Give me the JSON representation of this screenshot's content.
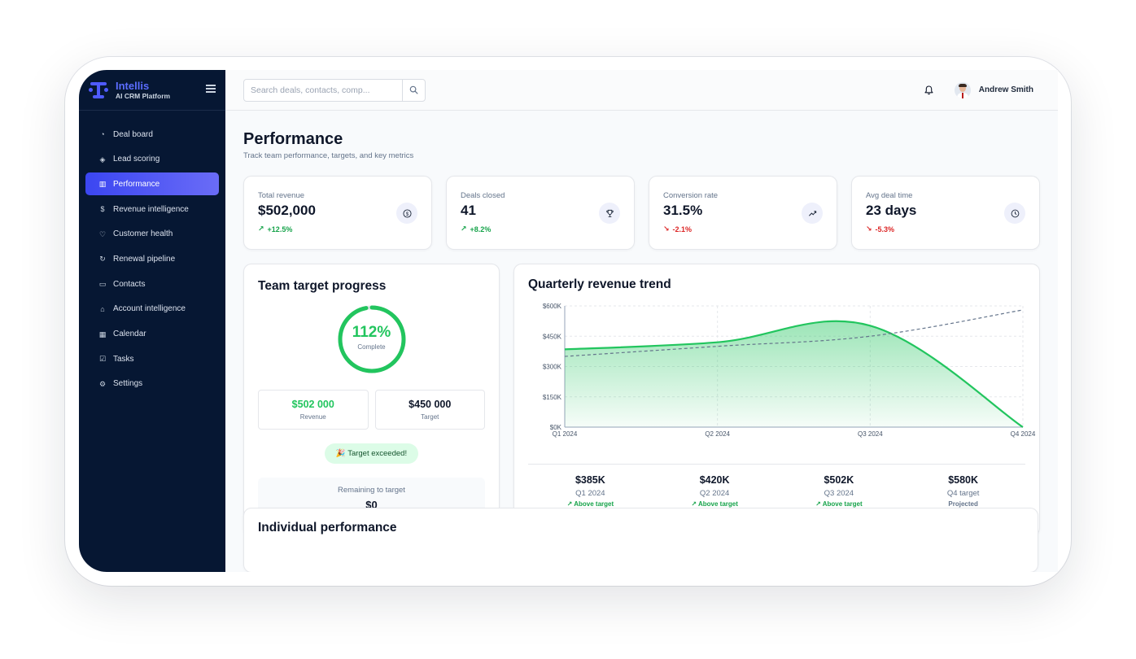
{
  "brand": {
    "name": "Intellis",
    "tagline": "AI CRM Platform"
  },
  "sidebar": {
    "items": [
      {
        "label": "Deal board",
        "icon": "pie-chart-icon",
        "glyph": "◔"
      },
      {
        "label": "Lead scoring",
        "icon": "target-icon",
        "glyph": "◈"
      },
      {
        "label": "Performance",
        "icon": "bar-chart-icon",
        "glyph": "▥",
        "active": true
      },
      {
        "label": "Revenue intelligence",
        "icon": "dollar-icon",
        "glyph": "$"
      },
      {
        "label": "Customer health",
        "icon": "heart-icon",
        "glyph": "♡"
      },
      {
        "label": "Renewal pipeline",
        "icon": "refresh-icon",
        "glyph": "↻"
      },
      {
        "label": "Contacts",
        "icon": "contact-card-icon",
        "glyph": "▭"
      },
      {
        "label": "Account intelligence",
        "icon": "bank-icon",
        "glyph": "⌂"
      },
      {
        "label": "Calendar",
        "icon": "calendar-icon",
        "glyph": "▦"
      },
      {
        "label": "Tasks",
        "icon": "checkbox-icon",
        "glyph": "☑"
      },
      {
        "label": "Settings",
        "icon": "gear-icon",
        "glyph": "⚙"
      }
    ]
  },
  "topbar": {
    "search_placeholder": "Search deals, contacts, comp...",
    "user_name": "Andrew Smith"
  },
  "page": {
    "title": "Performance",
    "subtitle": "Track team performance, targets, and key metrics"
  },
  "kpis": [
    {
      "label": "Total revenue",
      "value": "$502,000",
      "delta": "+12.5%",
      "trend": "up",
      "icon": "dollar-circle-icon"
    },
    {
      "label": "Deals closed",
      "value": "41",
      "delta": "+8.2%",
      "trend": "up",
      "icon": "trophy-icon"
    },
    {
      "label": "Conversion rate",
      "value": "31.5%",
      "delta": "-2.1%",
      "trend": "down",
      "icon": "trend-up-icon"
    },
    {
      "label": "Avg deal time",
      "value": "23 days",
      "delta": "-5.3%",
      "trend": "down",
      "icon": "clock-icon"
    }
  ],
  "target": {
    "title": "Team target progress",
    "percent_label": "112%",
    "percent_value": 112,
    "percent_caption": "Complete",
    "revenue_value": "$502 000",
    "revenue_label": "Revenue",
    "target_value": "$450 000",
    "target_label": "Target",
    "badge": "🎉 Target exceeded!",
    "remaining_label": "Remaining to target",
    "remaining_value": "$0"
  },
  "trend": {
    "title": "Quarterly revenue trend",
    "quarters": [
      {
        "value": "$385K",
        "label": "Q1 2024",
        "status": "Above target",
        "kind": "above"
      },
      {
        "value": "$420K",
        "label": "Q2 2024",
        "status": "Above target",
        "kind": "above"
      },
      {
        "value": "$502K",
        "label": "Q3 2024",
        "status": "Above target",
        "kind": "above"
      },
      {
        "value": "$580K",
        "label": "Q4 target",
        "status": "Projected",
        "kind": "projected"
      }
    ]
  },
  "chart_data": {
    "type": "area",
    "categories": [
      "Q1 2024",
      "Q2 2024",
      "Q3 2024",
      "Q4 2024"
    ],
    "y_ticks": [
      "$0K",
      "$150K",
      "$300K",
      "$450K",
      "$600K"
    ],
    "ylim": [
      0,
      600
    ],
    "series": [
      {
        "values": [
          385,
          420,
          502,
          0
        ],
        "color": "#22c55e",
        "style": "area"
      },
      {
        "values": [
          350,
          400,
          450,
          580
        ],
        "color": "#64748b",
        "style": "dashed"
      }
    ],
    "grid": true
  },
  "individual": {
    "title": "Individual performance"
  },
  "colors": {
    "accent": "#4f5bff",
    "positive": "#22c55e",
    "negative": "#dc2626",
    "sidebar": "#061733"
  }
}
